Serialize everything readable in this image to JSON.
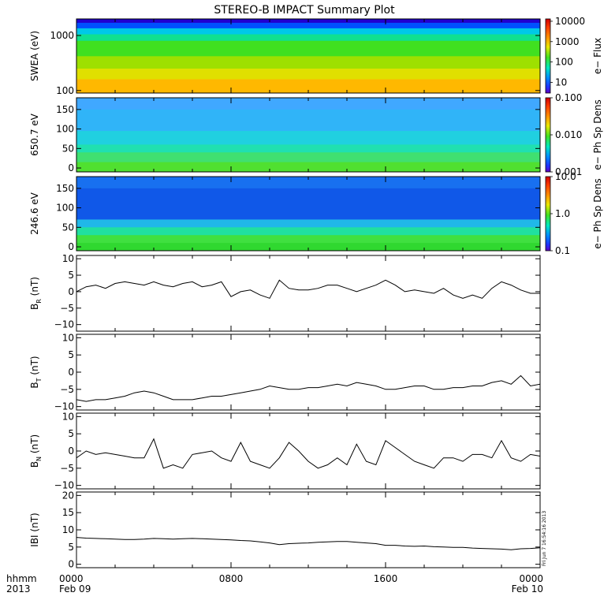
{
  "title": "STEREO-B IMPACT Summary Plot",
  "footer": {
    "left_top": "hhmm",
    "left_bottom": "2013",
    "ticks": [
      {
        "time": "0000",
        "date": "Feb 09",
        "hour": 0
      },
      {
        "time": "0800",
        "date": "",
        "hour": 8
      },
      {
        "time": "1600",
        "date": "",
        "hour": 16
      },
      {
        "time": "0000",
        "date": "Feb 10",
        "hour": 24
      }
    ]
  },
  "stamp": "Fri Jun  7 16:54:16 2013",
  "chart_data": [
    {
      "type": "heatmap",
      "ylabel": "SWEA (eV)",
      "yscale": "log",
      "ylim": [
        90,
        2000
      ],
      "yticks": [
        {
          "label": "1000",
          "value": 1000
        },
        {
          "label": "100",
          "value": 100
        }
      ],
      "colorbar": {
        "label": "e− Flux",
        "scale": "log",
        "range": [
          3,
          13000
        ],
        "ticks": [
          {
            "label": "10000",
            "value": 10000
          },
          {
            "label": "1000",
            "value": 1000
          },
          {
            "label": "100",
            "value": 100
          },
          {
            "label": "10",
            "value": 10
          }
        ]
      },
      "bands": [
        {
          "from": 1700,
          "to": 2000,
          "color": "#2000d0"
        },
        {
          "from": 1350,
          "to": 1700,
          "color": "#0050ff"
        },
        {
          "from": 1050,
          "to": 1350,
          "color": "#00c8e8"
        },
        {
          "from": 800,
          "to": 1050,
          "color": "#10e090"
        },
        {
          "from": 420,
          "to": 800,
          "color": "#40e020"
        },
        {
          "from": 250,
          "to": 420,
          "color": "#9ee000"
        },
        {
          "from": 160,
          "to": 250,
          "color": "#e0e000"
        },
        {
          "from": 90,
          "to": 160,
          "color": "#ffb800"
        }
      ]
    },
    {
      "type": "heatmap",
      "ylabel": "650.7 eV",
      "yscale": "linear",
      "ylim": [
        -10,
        180
      ],
      "yticks": [
        {
          "label": "150",
          "value": 150
        },
        {
          "label": "100",
          "value": 100
        },
        {
          "label": "50",
          "value": 50
        },
        {
          "label": "0",
          "value": 0
        }
      ],
      "colorbar": {
        "label": "e− Ph Sp Dens",
        "scale": "log",
        "range": [
          0.001,
          0.1
        ],
        "ticks": [
          {
            "label": "0.100",
            "value": 0.1
          },
          {
            "label": "0.010",
            "value": 0.01
          },
          {
            "label": "0.001",
            "value": 0.001
          }
        ]
      },
      "bands": [
        {
          "from": 150,
          "to": 180,
          "color": "#40a8ff"
        },
        {
          "from": 95,
          "to": 150,
          "color": "#30b4f8"
        },
        {
          "from": 60,
          "to": 95,
          "color": "#20d0e0"
        },
        {
          "from": 40,
          "to": 60,
          "color": "#20e0b0"
        },
        {
          "from": 15,
          "to": 40,
          "color": "#40e070"
        },
        {
          "from": -10,
          "to": 15,
          "color": "#50e030"
        }
      ]
    },
    {
      "type": "heatmap",
      "ylabel": "246.6 eV",
      "yscale": "linear",
      "ylim": [
        -10,
        180
      ],
      "yticks": [
        {
          "label": "150",
          "value": 150
        },
        {
          "label": "100",
          "value": 100
        },
        {
          "label": "50",
          "value": 50
        },
        {
          "label": "0",
          "value": 0
        }
      ],
      "colorbar": {
        "label": "e− Ph Sp Dens",
        "scale": "log",
        "range": [
          0.1,
          10
        ],
        "ticks": [
          {
            "label": "10.0",
            "value": 10
          },
          {
            "label": "1.0",
            "value": 1
          },
          {
            "label": "0.1",
            "value": 0.1
          }
        ]
      },
      "bands": [
        {
          "from": 150,
          "to": 180,
          "color": "#1870f0"
        },
        {
          "from": 70,
          "to": 150,
          "color": "#1058e8"
        },
        {
          "from": 50,
          "to": 70,
          "color": "#20b8e8"
        },
        {
          "from": 30,
          "to": 50,
          "color": "#20e0a0"
        },
        {
          "from": 10,
          "to": 30,
          "color": "#40e040"
        },
        {
          "from": -10,
          "to": 10,
          "color": "#30d830"
        }
      ]
    },
    {
      "type": "line",
      "ylabel": "B_R (nT)",
      "ylabel_main": "B",
      "ylabel_sub": "R",
      "ylabel_unit": "(nT)",
      "ylim": [
        -12,
        11
      ],
      "yticks": [
        {
          "label": "10",
          "value": 10
        },
        {
          "label": "5",
          "value": 5
        },
        {
          "label": "0",
          "value": 0
        },
        {
          "label": "−5",
          "value": -5
        },
        {
          "label": "−10",
          "value": -10
        }
      ],
      "series": [
        {
          "x": [
            0,
            0.5,
            1,
            1.5,
            2,
            2.5,
            3,
            3.5,
            4,
            4.5,
            5,
            5.5,
            6,
            6.5,
            7,
            7.5,
            8,
            8.5,
            9,
            9.5,
            10,
            10.5,
            11,
            11.5,
            12,
            12.5,
            13,
            13.5,
            14,
            14.5,
            15,
            15.5,
            16,
            16.5,
            17,
            17.5,
            18,
            18.5,
            19,
            19.5,
            20,
            20.5,
            21,
            21.5,
            22,
            22.5,
            23,
            23.5,
            24
          ],
          "y": [
            0,
            1.5,
            2,
            1,
            2.5,
            3,
            2.5,
            2,
            3,
            2,
            1.5,
            2.5,
            3,
            1.5,
            2,
            3,
            -1.5,
            0,
            0.5,
            -1,
            -2,
            3.5,
            1,
            0.5,
            0.5,
            1,
            2,
            2,
            1,
            0,
            1,
            2,
            3.5,
            2,
            0,
            0.5,
            0,
            -0.5,
            1,
            -1,
            -2,
            -1,
            -2,
            1,
            3,
            2,
            0.5,
            -0.5,
            -0.5
          ]
        }
      ]
    },
    {
      "type": "line",
      "ylabel": "B_T (nT)",
      "ylabel_main": "B",
      "ylabel_sub": "T",
      "ylabel_unit": "(nT)",
      "ylim": [
        -11,
        11
      ],
      "yticks": [
        {
          "label": "10",
          "value": 10
        },
        {
          "label": "5",
          "value": 5
        },
        {
          "label": "0",
          "value": 0
        },
        {
          "label": "−5",
          "value": -5
        },
        {
          "label": "−10",
          "value": -10
        }
      ],
      "series": [
        {
          "x": [
            0,
            0.5,
            1,
            1.5,
            2,
            2.5,
            3,
            3.5,
            4,
            4.5,
            5,
            5.5,
            6,
            6.5,
            7,
            7.5,
            8,
            8.5,
            9,
            9.5,
            10,
            10.5,
            11,
            11.5,
            12,
            12.5,
            13,
            13.5,
            14,
            14.5,
            15,
            15.5,
            16,
            16.5,
            17,
            17.5,
            18,
            18.5,
            19,
            19.5,
            20,
            20.5,
            21,
            21.5,
            22,
            22.5,
            23,
            23.5,
            24
          ],
          "y": [
            -8,
            -8.5,
            -8,
            -8,
            -7.5,
            -7,
            -6,
            -5.5,
            -6,
            -7,
            -8,
            -8,
            -8,
            -7.5,
            -7,
            -7,
            -6.5,
            -6,
            -5.5,
            -5,
            -4,
            -4.5,
            -5,
            -5,
            -4.5,
            -4.5,
            -4,
            -3.5,
            -4,
            -3,
            -3.5,
            -4,
            -5,
            -5,
            -4.5,
            -4,
            -4,
            -5,
            -5,
            -4.5,
            -4.5,
            -4,
            -4,
            -3,
            -2.5,
            -3.5,
            -1,
            -4,
            -3.5
          ]
        }
      ]
    },
    {
      "type": "line",
      "ylabel": "B_N (nT)",
      "ylabel_main": "B",
      "ylabel_sub": "N",
      "ylabel_unit": "(nT)",
      "ylim": [
        -11,
        11
      ],
      "yticks": [
        {
          "label": "10",
          "value": 10
        },
        {
          "label": "5",
          "value": 5
        },
        {
          "label": "0",
          "value": 0
        },
        {
          "label": "−5",
          "value": -5
        },
        {
          "label": "−10",
          "value": -10
        }
      ],
      "series": [
        {
          "x": [
            0,
            0.5,
            1,
            1.5,
            2,
            2.5,
            3,
            3.5,
            4,
            4.5,
            5,
            5.5,
            6,
            6.5,
            7,
            7.5,
            8,
            8.5,
            9,
            9.5,
            10,
            10.5,
            11,
            11.5,
            12,
            12.5,
            13,
            13.5,
            14,
            14.5,
            15,
            15.5,
            16,
            16.5,
            17,
            17.5,
            18,
            18.5,
            19,
            19.5,
            20,
            20.5,
            21,
            21.5,
            22,
            22.5,
            23,
            23.5,
            24
          ],
          "y": [
            -2,
            0,
            -1,
            -0.5,
            -1,
            -1.5,
            -2,
            -2,
            3.5,
            -5,
            -4,
            -5,
            -1,
            -0.5,
            0,
            -2,
            -3,
            2.5,
            -3,
            -4,
            -5,
            -2,
            2.5,
            0,
            -3,
            -5,
            -4,
            -2,
            -4,
            2,
            -3,
            -4,
            3,
            1,
            -1,
            -3,
            -4,
            -5,
            -2,
            -2,
            -3,
            -1,
            -1,
            -2,
            3,
            -2,
            -3,
            -1,
            -1.5
          ]
        }
      ]
    },
    {
      "type": "line",
      "ylabel": "IBI (nT)",
      "ylim": [
        -1,
        21
      ],
      "yticks": [
        {
          "label": "20",
          "value": 20
        },
        {
          "label": "15",
          "value": 15
        },
        {
          "label": "10",
          "value": 10
        },
        {
          "label": "5",
          "value": 5
        },
        {
          "label": "0",
          "value": 0
        }
      ],
      "series": [
        {
          "x": [
            0,
            0.5,
            1,
            1.5,
            2,
            2.5,
            3,
            3.5,
            4,
            4.5,
            5,
            5.5,
            6,
            6.5,
            7,
            7.5,
            8,
            8.5,
            9,
            9.5,
            10,
            10.5,
            11,
            11.5,
            12,
            12.5,
            13,
            13.5,
            14,
            14.5,
            15,
            15.5,
            16,
            16.5,
            17,
            17.5,
            18,
            18.5,
            19,
            19.5,
            20,
            20.5,
            21,
            21.5,
            22,
            22.5,
            23,
            23.5,
            24
          ],
          "y": [
            7.8,
            7.6,
            7.5,
            7.4,
            7.3,
            7.2,
            7.2,
            7.3,
            7.5,
            7.4,
            7.3,
            7.4,
            7.5,
            7.4,
            7.3,
            7.2,
            7.1,
            6.9,
            6.8,
            6.5,
            6.2,
            5.7,
            6.0,
            6.1,
            6.2,
            6.4,
            6.5,
            6.6,
            6.6,
            6.4,
            6.2,
            6.0,
            5.5,
            5.5,
            5.3,
            5.2,
            5.3,
            5.1,
            5.0,
            4.9,
            4.9,
            4.7,
            4.6,
            4.5,
            4.4,
            4.2,
            4.5,
            4.6,
            4.8
          ]
        }
      ]
    }
  ]
}
